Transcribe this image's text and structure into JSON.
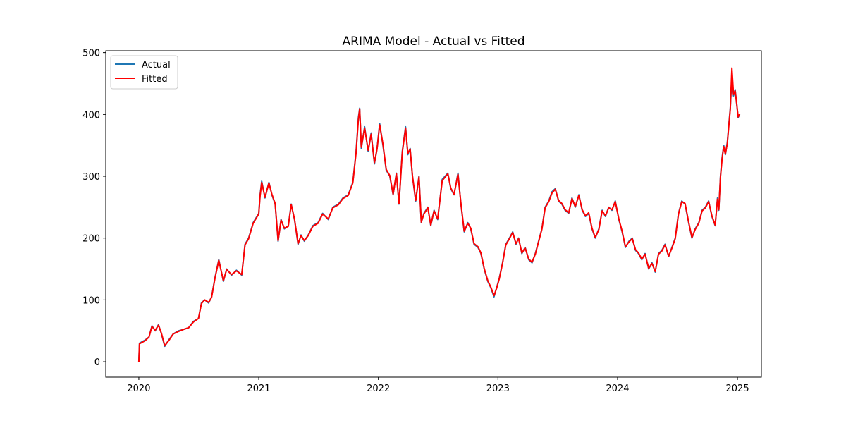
{
  "chart_data": {
    "type": "line",
    "title": "ARIMA Model - Actual vs Fitted",
    "xlabel": "",
    "ylabel": "",
    "x_tick_labels": [
      "2020",
      "2021",
      "2022",
      "2023",
      "2024",
      "2025"
    ],
    "y_tick_labels": [
      "0",
      "100",
      "200",
      "300",
      "400",
      "500"
    ],
    "xlim": [
      "2019-09-22",
      "2025-03-15"
    ],
    "ylim": [
      -25,
      503
    ],
    "grid": false,
    "legend_position": "top-left",
    "series": [
      {
        "name": "Actual",
        "color": "#1f77b4",
        "x": [
          "2020-01-01",
          "2020-01-03",
          "2020-01-20",
          "2020-02-01",
          "2020-02-10",
          "2020-02-20",
          "2020-03-01",
          "2020-03-10",
          "2020-03-20",
          "2020-04-01",
          "2020-04-15",
          "2020-05-01",
          "2020-05-15",
          "2020-06-01",
          "2020-06-15",
          "2020-07-01",
          "2020-07-10",
          "2020-07-20",
          "2020-08-01",
          "2020-08-10",
          "2020-08-20",
          "2020-09-01",
          "2020-09-15",
          "2020-09-25",
          "2020-10-10",
          "2020-10-25",
          "2020-11-10",
          "2020-11-20",
          "2020-12-01",
          "2020-12-15",
          "2021-01-01",
          "2021-01-05",
          "2021-01-10",
          "2021-01-20",
          "2021-02-01",
          "2021-02-10",
          "2021-02-20",
          "2021-03-01",
          "2021-03-10",
          "2021-03-20",
          "2021-04-01",
          "2021-04-10",
          "2021-04-20",
          "2021-05-01",
          "2021-05-10",
          "2021-05-20",
          "2021-06-01",
          "2021-06-15",
          "2021-07-01",
          "2021-07-15",
          "2021-08-01",
          "2021-08-15",
          "2021-09-01",
          "2021-09-15",
          "2021-10-01",
          "2021-10-15",
          "2021-10-25",
          "2021-11-01",
          "2021-11-05",
          "2021-11-10",
          "2021-11-20",
          "2021-12-01",
          "2021-12-10",
          "2021-12-20",
          "2021-12-28",
          "2022-01-05",
          "2022-01-15",
          "2022-01-25",
          "2022-02-05",
          "2022-02-15",
          "2022-02-25",
          "2022-03-05",
          "2022-03-15",
          "2022-03-25",
          "2022-04-01",
          "2022-04-08",
          "2022-04-15",
          "2022-04-25",
          "2022-05-05",
          "2022-05-12",
          "2022-05-20",
          "2022-06-01",
          "2022-06-10",
          "2022-06-20",
          "2022-07-01",
          "2022-07-15",
          "2022-08-01",
          "2022-08-10",
          "2022-08-20",
          "2022-09-01",
          "2022-09-10",
          "2022-09-20",
          "2022-10-01",
          "2022-10-10",
          "2022-10-20",
          "2022-11-01",
          "2022-11-10",
          "2022-11-20",
          "2022-12-01",
          "2022-12-10",
          "2022-12-20",
          "2022-12-28",
          "2023-01-05",
          "2023-01-15",
          "2023-01-25",
          "2023-02-05",
          "2023-02-15",
          "2023-02-25",
          "2023-03-05",
          "2023-03-15",
          "2023-03-25",
          "2023-04-05",
          "2023-04-15",
          "2023-04-25",
          "2023-05-05",
          "2023-05-15",
          "2023-05-25",
          "2023-06-05",
          "2023-06-15",
          "2023-06-25",
          "2023-07-05",
          "2023-07-15",
          "2023-07-25",
          "2023-08-05",
          "2023-08-15",
          "2023-08-25",
          "2023-09-05",
          "2023-09-15",
          "2023-09-25",
          "2023-10-05",
          "2023-10-15",
          "2023-10-25",
          "2023-11-05",
          "2023-11-15",
          "2023-11-25",
          "2023-12-05",
          "2023-12-15",
          "2023-12-25",
          "2024-01-05",
          "2024-01-15",
          "2024-01-25",
          "2024-02-05",
          "2024-02-15",
          "2024-02-25",
          "2024-03-05",
          "2024-03-15",
          "2024-03-25",
          "2024-04-05",
          "2024-04-15",
          "2024-04-25",
          "2024-05-05",
          "2024-05-15",
          "2024-05-25",
          "2024-06-05",
          "2024-06-15",
          "2024-06-25",
          "2024-07-05",
          "2024-07-15",
          "2024-07-25",
          "2024-08-05",
          "2024-08-15",
          "2024-08-25",
          "2024-09-05",
          "2024-09-15",
          "2024-09-25",
          "2024-10-05",
          "2024-10-15",
          "2024-10-25",
          "2024-11-01",
          "2024-11-05",
          "2024-11-10",
          "2024-11-15",
          "2024-11-20",
          "2024-11-25",
          "2024-12-01",
          "2024-12-05",
          "2024-12-10",
          "2024-12-15",
          "2024-12-20",
          "2024-12-25",
          "2024-12-30",
          "2025-01-03",
          "2025-01-08"
        ],
        "y": [
          0,
          30,
          35,
          40,
          58,
          50,
          60,
          45,
          25,
          35,
          45,
          50,
          52,
          55,
          65,
          70,
          95,
          100,
          95,
          105,
          135,
          165,
          130,
          150,
          140,
          148,
          140,
          190,
          200,
          225,
          240,
          270,
          292,
          265,
          290,
          270,
          255,
          195,
          230,
          215,
          220,
          255,
          230,
          190,
          205,
          195,
          205,
          220,
          225,
          240,
          230,
          250,
          255,
          265,
          270,
          290,
          340,
          395,
          410,
          345,
          380,
          340,
          370,
          320,
          345,
          385,
          350,
          310,
          300,
          270,
          305,
          255,
          340,
          380,
          335,
          345,
          300,
          260,
          300,
          225,
          240,
          250,
          220,
          245,
          230,
          295,
          305,
          280,
          270,
          305,
          255,
          210,
          225,
          215,
          190,
          185,
          175,
          150,
          130,
          120,
          105,
          120,
          135,
          160,
          190,
          200,
          210,
          190,
          200,
          175,
          185,
          165,
          160,
          175,
          195,
          215,
          250,
          260,
          275,
          280,
          260,
          255,
          245,
          240,
          265,
          250,
          270,
          245,
          235,
          240,
          215,
          200,
          215,
          245,
          235,
          250,
          245,
          260,
          230,
          210,
          185,
          195,
          200,
          180,
          175,
          165,
          175,
          150,
          160,
          145,
          175,
          180,
          190,
          170,
          185,
          200,
          240,
          260,
          255,
          225,
          200,
          215,
          225,
          245,
          250,
          260,
          235,
          220,
          265,
          245,
          300,
          330,
          350,
          335,
          355,
          380,
          410,
          460,
          430,
          440,
          415,
          395,
          400
        ]
      },
      {
        "name": "Fitted",
        "color": "#ff0000",
        "x": [
          "2020-01-01",
          "2020-01-03",
          "2020-01-20",
          "2020-02-01",
          "2020-02-10",
          "2020-02-20",
          "2020-03-01",
          "2020-03-10",
          "2020-03-20",
          "2020-04-01",
          "2020-04-15",
          "2020-05-01",
          "2020-05-15",
          "2020-06-01",
          "2020-06-15",
          "2020-07-01",
          "2020-07-10",
          "2020-07-20",
          "2020-08-01",
          "2020-08-10",
          "2020-08-20",
          "2020-09-01",
          "2020-09-15",
          "2020-09-25",
          "2020-10-10",
          "2020-10-25",
          "2020-11-10",
          "2020-11-20",
          "2020-12-01",
          "2020-12-15",
          "2021-01-01",
          "2021-01-05",
          "2021-01-10",
          "2021-01-20",
          "2021-02-01",
          "2021-02-10",
          "2021-02-20",
          "2021-03-01",
          "2021-03-10",
          "2021-03-20",
          "2021-04-01",
          "2021-04-10",
          "2021-04-20",
          "2021-05-01",
          "2021-05-10",
          "2021-05-20",
          "2021-06-01",
          "2021-06-15",
          "2021-07-01",
          "2021-07-15",
          "2021-08-01",
          "2021-08-15",
          "2021-09-01",
          "2021-09-15",
          "2021-10-01",
          "2021-10-15",
          "2021-10-25",
          "2021-11-01",
          "2021-11-05",
          "2021-11-10",
          "2021-11-20",
          "2021-12-01",
          "2021-12-10",
          "2021-12-20",
          "2021-12-28",
          "2022-01-05",
          "2022-01-15",
          "2022-01-25",
          "2022-02-05",
          "2022-02-15",
          "2022-02-25",
          "2022-03-05",
          "2022-03-15",
          "2022-03-25",
          "2022-04-01",
          "2022-04-08",
          "2022-04-15",
          "2022-04-25",
          "2022-05-05",
          "2022-05-12",
          "2022-05-20",
          "2022-06-01",
          "2022-06-10",
          "2022-06-20",
          "2022-07-01",
          "2022-07-15",
          "2022-08-01",
          "2022-08-10",
          "2022-08-20",
          "2022-09-01",
          "2022-09-10",
          "2022-09-20",
          "2022-10-01",
          "2022-10-10",
          "2022-10-20",
          "2022-11-01",
          "2022-11-10",
          "2022-11-20",
          "2022-12-01",
          "2022-12-10",
          "2022-12-20",
          "2022-12-28",
          "2023-01-05",
          "2023-01-15",
          "2023-01-25",
          "2023-02-05",
          "2023-02-15",
          "2023-02-25",
          "2023-03-05",
          "2023-03-15",
          "2023-03-25",
          "2023-04-05",
          "2023-04-15",
          "2023-04-25",
          "2023-05-05",
          "2023-05-15",
          "2023-05-25",
          "2023-06-05",
          "2023-06-15",
          "2023-06-25",
          "2023-07-05",
          "2023-07-15",
          "2023-07-25",
          "2023-08-05",
          "2023-08-15",
          "2023-08-25",
          "2023-09-05",
          "2023-09-15",
          "2023-09-25",
          "2023-10-05",
          "2023-10-15",
          "2023-10-25",
          "2023-11-05",
          "2023-11-15",
          "2023-11-25",
          "2023-12-05",
          "2023-12-15",
          "2023-12-25",
          "2024-01-05",
          "2024-01-15",
          "2024-01-25",
          "2024-02-05",
          "2024-02-15",
          "2024-02-25",
          "2024-03-05",
          "2024-03-15",
          "2024-03-25",
          "2024-04-05",
          "2024-04-15",
          "2024-04-25",
          "2024-05-05",
          "2024-05-15",
          "2024-05-25",
          "2024-06-05",
          "2024-06-15",
          "2024-06-25",
          "2024-07-05",
          "2024-07-15",
          "2024-07-25",
          "2024-08-05",
          "2024-08-15",
          "2024-08-25",
          "2024-09-05",
          "2024-09-15",
          "2024-09-25",
          "2024-10-05",
          "2024-10-15",
          "2024-10-25",
          "2024-11-01",
          "2024-11-05",
          "2024-11-10",
          "2024-11-15",
          "2024-11-20",
          "2024-11-25",
          "2024-12-01",
          "2024-12-05",
          "2024-12-10",
          "2024-12-15",
          "2024-12-20",
          "2024-12-25",
          "2024-12-30",
          "2025-01-03",
          "2025-01-08"
        ],
        "y": [
          0,
          29,
          34,
          40,
          57,
          51,
          59,
          46,
          26,
          34,
          45,
          49,
          52,
          55,
          64,
          70,
          94,
          100,
          96,
          104,
          134,
          164,
          131,
          149,
          141,
          147,
          141,
          189,
          199,
          224,
          239,
          268,
          290,
          266,
          289,
          271,
          256,
          196,
          229,
          216,
          219,
          254,
          231,
          191,
          204,
          196,
          204,
          219,
          224,
          239,
          231,
          249,
          254,
          264,
          269,
          289,
          338,
          392,
          409,
          347,
          378,
          342,
          368,
          322,
          344,
          383,
          352,
          311,
          301,
          271,
          304,
          256,
          338,
          378,
          337,
          344,
          301,
          261,
          299,
          226,
          239,
          249,
          221,
          244,
          231,
          293,
          304,
          281,
          271,
          303,
          256,
          211,
          224,
          216,
          191,
          186,
          176,
          151,
          131,
          121,
          107,
          119,
          134,
          159,
          189,
          199,
          209,
          191,
          199,
          176,
          184,
          166,
          161,
          174,
          194,
          214,
          249,
          259,
          273,
          279,
          261,
          256,
          246,
          241,
          264,
          251,
          269,
          246,
          236,
          241,
          216,
          201,
          214,
          244,
          236,
          249,
          246,
          259,
          231,
          211,
          186,
          194,
          199,
          181,
          176,
          166,
          174,
          151,
          159,
          146,
          174,
          179,
          189,
          171,
          184,
          199,
          239,
          259,
          256,
          226,
          201,
          214,
          224,
          244,
          249,
          259,
          236,
          221,
          263,
          246,
          298,
          328,
          348,
          336,
          353,
          378,
          408,
          475,
          432,
          438,
          416,
          396,
          401
        ]
      }
    ]
  }
}
